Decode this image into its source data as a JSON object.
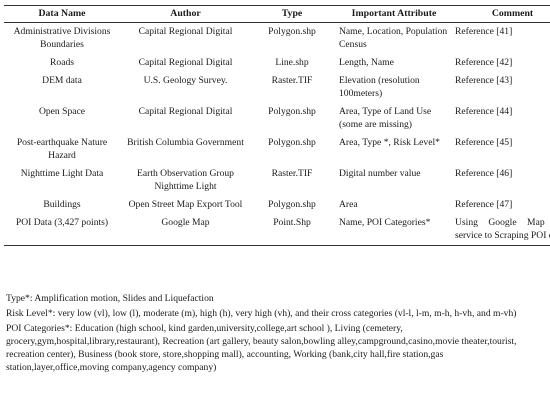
{
  "table": {
    "headers": [
      "Data Name",
      "Author",
      "Type",
      "Important Attribute",
      "Comment"
    ],
    "rows": [
      {
        "name": "Administrative Divisions Boundaries",
        "author": "Capital Regional Digital",
        "type": "Polygon.shp",
        "attr": "Name, Location, Population Census",
        "comment": "Reference [41]"
      },
      {
        "name": "Roads",
        "author": "Capital Regional Digital",
        "type": "Line.shp",
        "attr": "Length, Name",
        "comment": "Reference [42]"
      },
      {
        "name": "DEM data",
        "author": "U.S. Geology Survey.",
        "type": "Raster.TIF",
        "attr": "Elevation (resolution 100meters)",
        "comment": "Reference [43]"
      },
      {
        "name": "Open Space",
        "author": "Capital Regional Digital",
        "type": "Polygon.shp",
        "attr": "Area, Type of Land Use (some are missing)",
        "comment": "Reference [44]"
      },
      {
        "name": "Post-earthquake Nature Hazard",
        "author": "British Columbia Government",
        "type": "Polygon.shp",
        "attr": "Area, Type *, Risk Level*",
        "comment": "Reference [45]"
      },
      {
        "name": "Nighttime Light Data",
        "author": "Earth Observation Group Nighttime Light",
        "type": "Raster.TIF",
        "attr": "Digital number value",
        "comment": "Reference [46]"
      },
      {
        "name": "Buildings",
        "author": "Open Street Map Export Tool",
        "type": "Polygon.shp",
        "attr": "Area",
        "comment": "Reference [47]"
      },
      {
        "name": "POI Data (3,427 points)",
        "author": "Google Map",
        "type": "Point.Shp",
        "attr": "Name, POI Categories*",
        "comment": "Using Google Map API service to Scraping POI data"
      }
    ]
  },
  "notes": {
    "type_note": "Type*: Amplification motion, Slides and Liquefaction",
    "risk_note": "Risk Level*: very low (vl), low (l), moderate (m), high (h), very high (vh), and their cross categories (vl-l, l-m, m-h, h-vh, and m-vh)",
    "poi_note": "POI Categories*: Education (high school, kind garden,university,college,art school ), Living (cemetery, grocery,gym,hospital,library,restaurant), Recreation (art gallery, beauty salon,bowling alley,campground,casino,movie theater,tourist, recreation center), Business (book store, store,shopping mall), accounting, Working (bank,city hall,fire station,gas station,layer,office,moving company,agency company)"
  }
}
